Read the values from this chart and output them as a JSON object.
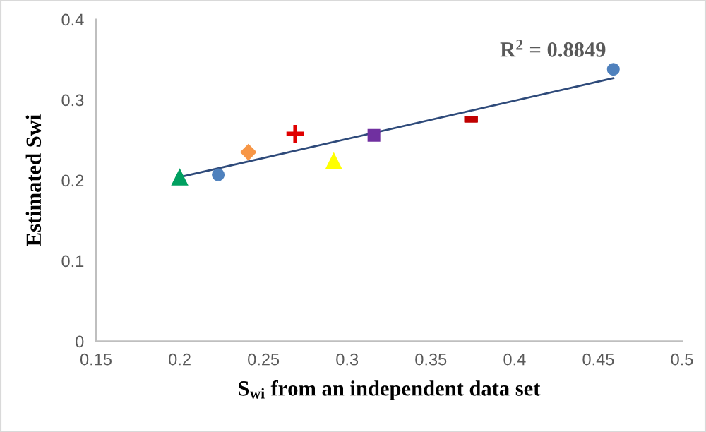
{
  "chart_data": {
    "type": "scatter",
    "xlabel": "S$_{wi}$ from an independent data set",
    "ylabel": "Estimated Swi",
    "annotations": [
      "R$^{2}$ = 0.8849"
    ],
    "series": [
      {
        "color": "#4f81bd",
        "marker": "circle",
        "x": [
          0.223,
          0.459
        ],
        "values": [
          0.207,
          0.338
        ]
      },
      {
        "color": "#00a060",
        "marker": "triangle",
        "x": [
          0.2
        ],
        "values": [
          0.204
        ]
      },
      {
        "color": "#f79646",
        "marker": "diamond",
        "x": [
          0.241
        ],
        "values": [
          0.235
        ]
      },
      {
        "color": "#e00000",
        "marker": "cross",
        "x": [
          0.269
        ],
        "values": [
          0.258
        ]
      },
      {
        "color": "#ffff00",
        "marker": "triangle",
        "x": [
          0.292
        ],
        "values": [
          0.224
        ]
      },
      {
        "color": "#7030a0",
        "marker": "square",
        "x": [
          0.316
        ],
        "values": [
          0.256
        ]
      },
      {
        "color": "#c00000",
        "x": [
          0.374
        ],
        "values": [
          0.276
        ]
      },
      {
        "type": "line",
        "color": "#2e4a7a",
        "marker": "none",
        "x": [
          0.2,
          0.459
        ],
        "values": [
          0.204,
          0.327
        ]
      }
    ],
    "xlim": [
      0.15,
      0.5
    ],
    "xticks": [
      0.15,
      0.2,
      0.25,
      0.3,
      0.35,
      0.4,
      0.45,
      0.5
    ],
    "ylim": [
      0,
      0.4
    ],
    "yticks": [
      0,
      0.1,
      0.2,
      0.3,
      0.4
    ],
    "grid": false,
    "legend": false
  }
}
